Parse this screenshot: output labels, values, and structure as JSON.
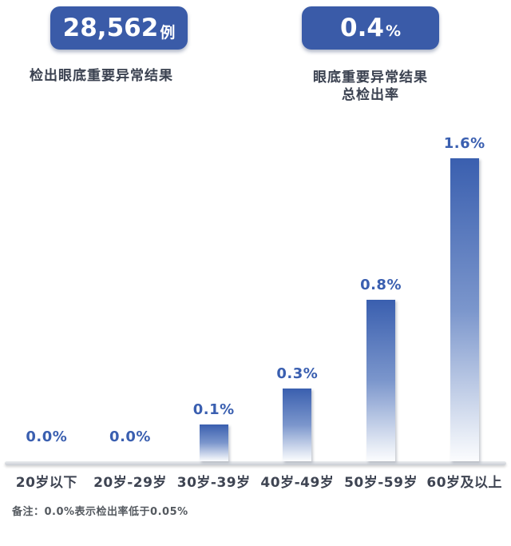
{
  "stats": [
    {
      "value": "28,562",
      "suffix": "例",
      "label_lines": [
        "检出眼底重要异常结果"
      ]
    },
    {
      "value": "0.4",
      "suffix": "%",
      "label_lines": [
        "眼底重要异常结果",
        "总检出率"
      ]
    }
  ],
  "chart_data": {
    "type": "bar",
    "categories": [
      "20岁以下",
      "20岁-29岁",
      "30岁-39岁",
      "40岁-49岁",
      "50岁-59岁",
      "60岁及以上"
    ],
    "values": [
      0.0,
      0.0,
      0.1,
      0.3,
      0.8,
      1.6
    ],
    "value_labels": [
      "0.0%",
      "0.0%",
      "0.1%",
      "0.3%",
      "0.8%",
      "1.6%"
    ],
    "title": "",
    "xlabel": "",
    "ylabel": "",
    "ylim": [
      0,
      1.6
    ],
    "grid": false,
    "legend": false,
    "bar_color_top": "#3A5FAF",
    "bar_color_bottom": "#FBFCFE",
    "value_label_color": "#3A5FB0"
  },
  "note": "备注：0.0%表示检出率低于0.05%",
  "colors": {
    "card_bg": "#3A5BA8",
    "card_text": "#FFFFFF",
    "stat_label_text": "#3A4150",
    "category_text": "#3E4452",
    "note_text": "#555A60",
    "baseline": "#C9CDD4"
  }
}
